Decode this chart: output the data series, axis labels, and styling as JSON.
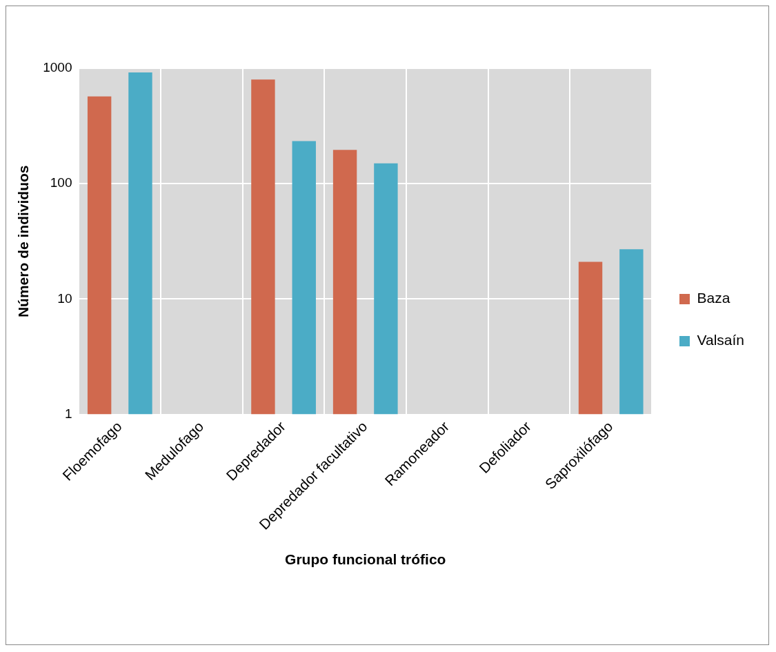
{
  "chart_data": {
    "type": "bar",
    "xlabel": "Grupo funcional trófico",
    "ylabel": "Número de individuos",
    "categories": [
      "Floemofago",
      "Medulofago",
      "Depredador",
      "Depredador facultativo",
      "Ramoneador",
      "Defoliador",
      "Saproxilófago"
    ],
    "series": [
      {
        "name": "Baza",
        "color": "#d0694e",
        "values": [
          570,
          null,
          800,
          196,
          null,
          null,
          21
        ]
      },
      {
        "name": "Valsaín",
        "color": "#4bacc6",
        "values": [
          920,
          null,
          234,
          150,
          null,
          null,
          27
        ]
      }
    ],
    "log": true,
    "ylim": [
      1,
      1000
    ],
    "yticks": [
      1,
      10,
      100,
      1000
    ],
    "grid": true,
    "legend": "right"
  }
}
